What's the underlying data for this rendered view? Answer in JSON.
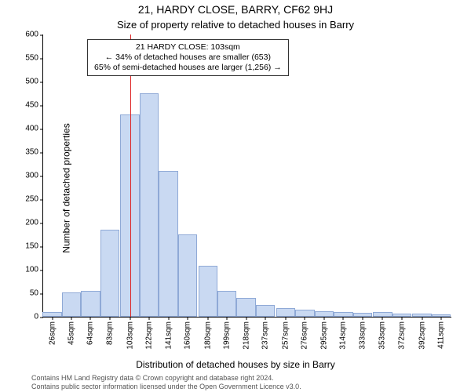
{
  "header": {
    "address_line": "21, HARDY CLOSE, BARRY, CF62 9HJ",
    "subtitle": "Size of property relative to detached houses in Barry"
  },
  "chart": {
    "type": "histogram",
    "ylabel": "Number of detached properties",
    "xlabel": "Distribution of detached houses by size in Barry",
    "xlim": [
      17,
      421
    ],
    "ylim": [
      0,
      600
    ],
    "ytick_step": 50,
    "yticks": [
      0,
      50,
      100,
      150,
      200,
      250,
      300,
      350,
      400,
      450,
      500,
      550,
      600
    ],
    "xticks": [
      26,
      45,
      64,
      83,
      103,
      122,
      141,
      160,
      180,
      199,
      218,
      237,
      257,
      276,
      295,
      314,
      333,
      353,
      372,
      392,
      411
    ],
    "xtick_suffix": "sqm",
    "bar_color": "#c9d9f2",
    "bar_border_color": "#8fa9d6",
    "refline_color": "#dd2222",
    "refline_x": 103,
    "background_color": "#ffffff",
    "axis_color": "#000000",
    "bar_width_sqm": 19,
    "bars": [
      {
        "x": 26,
        "count": 10
      },
      {
        "x": 45,
        "count": 52
      },
      {
        "x": 64,
        "count": 55
      },
      {
        "x": 83,
        "count": 185
      },
      {
        "x": 103,
        "count": 430
      },
      {
        "x": 122,
        "count": 475
      },
      {
        "x": 141,
        "count": 310
      },
      {
        "x": 160,
        "count": 175
      },
      {
        "x": 180,
        "count": 108
      },
      {
        "x": 199,
        "count": 55
      },
      {
        "x": 218,
        "count": 40
      },
      {
        "x": 237,
        "count": 25
      },
      {
        "x": 257,
        "count": 18
      },
      {
        "x": 276,
        "count": 15
      },
      {
        "x": 295,
        "count": 12
      },
      {
        "x": 314,
        "count": 10
      },
      {
        "x": 333,
        "count": 8
      },
      {
        "x": 353,
        "count": 10
      },
      {
        "x": 372,
        "count": 6
      },
      {
        "x": 392,
        "count": 6
      },
      {
        "x": 411,
        "count": 5
      }
    ],
    "annotation": {
      "line1": "21 HARDY CLOSE: 103sqm",
      "line2": "← 34% of detached houses are smaller (653)",
      "line3": "65% of semi-detached houses are larger (1,256) →",
      "border_color": "#333333",
      "font_size": 10.5
    }
  },
  "footer": {
    "line1": "Contains HM Land Registry data © Crown copyright and database right 2024.",
    "line2": "Contains public sector information licensed under the Open Government Licence v3.0."
  }
}
